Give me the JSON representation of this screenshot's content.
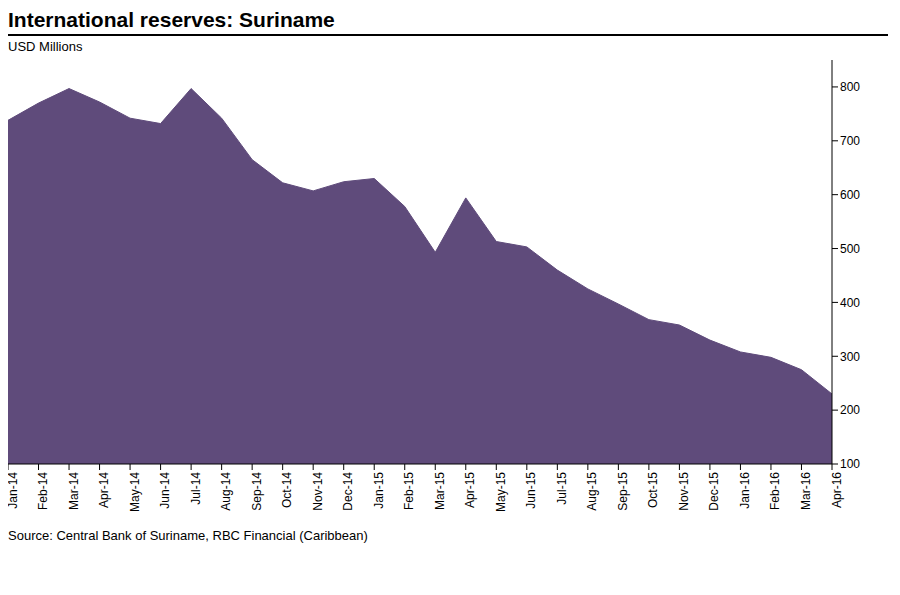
{
  "chart_data": {
    "type": "area",
    "title": "International reserves: Suriname",
    "subtitle": "USD Millions",
    "source": "Source: Central Bank of Suriname, RBC Financial (Caribbean)",
    "categories": [
      "Jan-14",
      "Feb-14",
      "Mar-14",
      "Apr-14",
      "May-14",
      "Jun-14",
      "Jul-14",
      "Aug-14",
      "Sep-14",
      "Oct-14",
      "Nov-14",
      "Dec-14",
      "Jan-15",
      "Feb-15",
      "Mar-15",
      "Apr-15",
      "May-15",
      "Jun-15",
      "Jul-15",
      "Aug-15",
      "Sep-15",
      "Oct-15",
      "Nov-15",
      "Dec-15",
      "Jan-16",
      "Feb-16",
      "Mar-16",
      "Apr-16"
    ],
    "values": [
      738,
      770,
      797,
      772,
      742,
      732,
      797,
      742,
      665,
      622,
      607,
      624,
      630,
      578,
      493,
      594,
      513,
      503,
      460,
      425,
      397,
      368,
      358,
      330,
      308,
      298,
      275,
      230
    ],
    "color": "#5f4b7b",
    "ylim": [
      100,
      850
    ],
    "yticks": [
      100,
      200,
      300,
      400,
      500,
      600,
      700,
      800
    ],
    "grid": false
  }
}
